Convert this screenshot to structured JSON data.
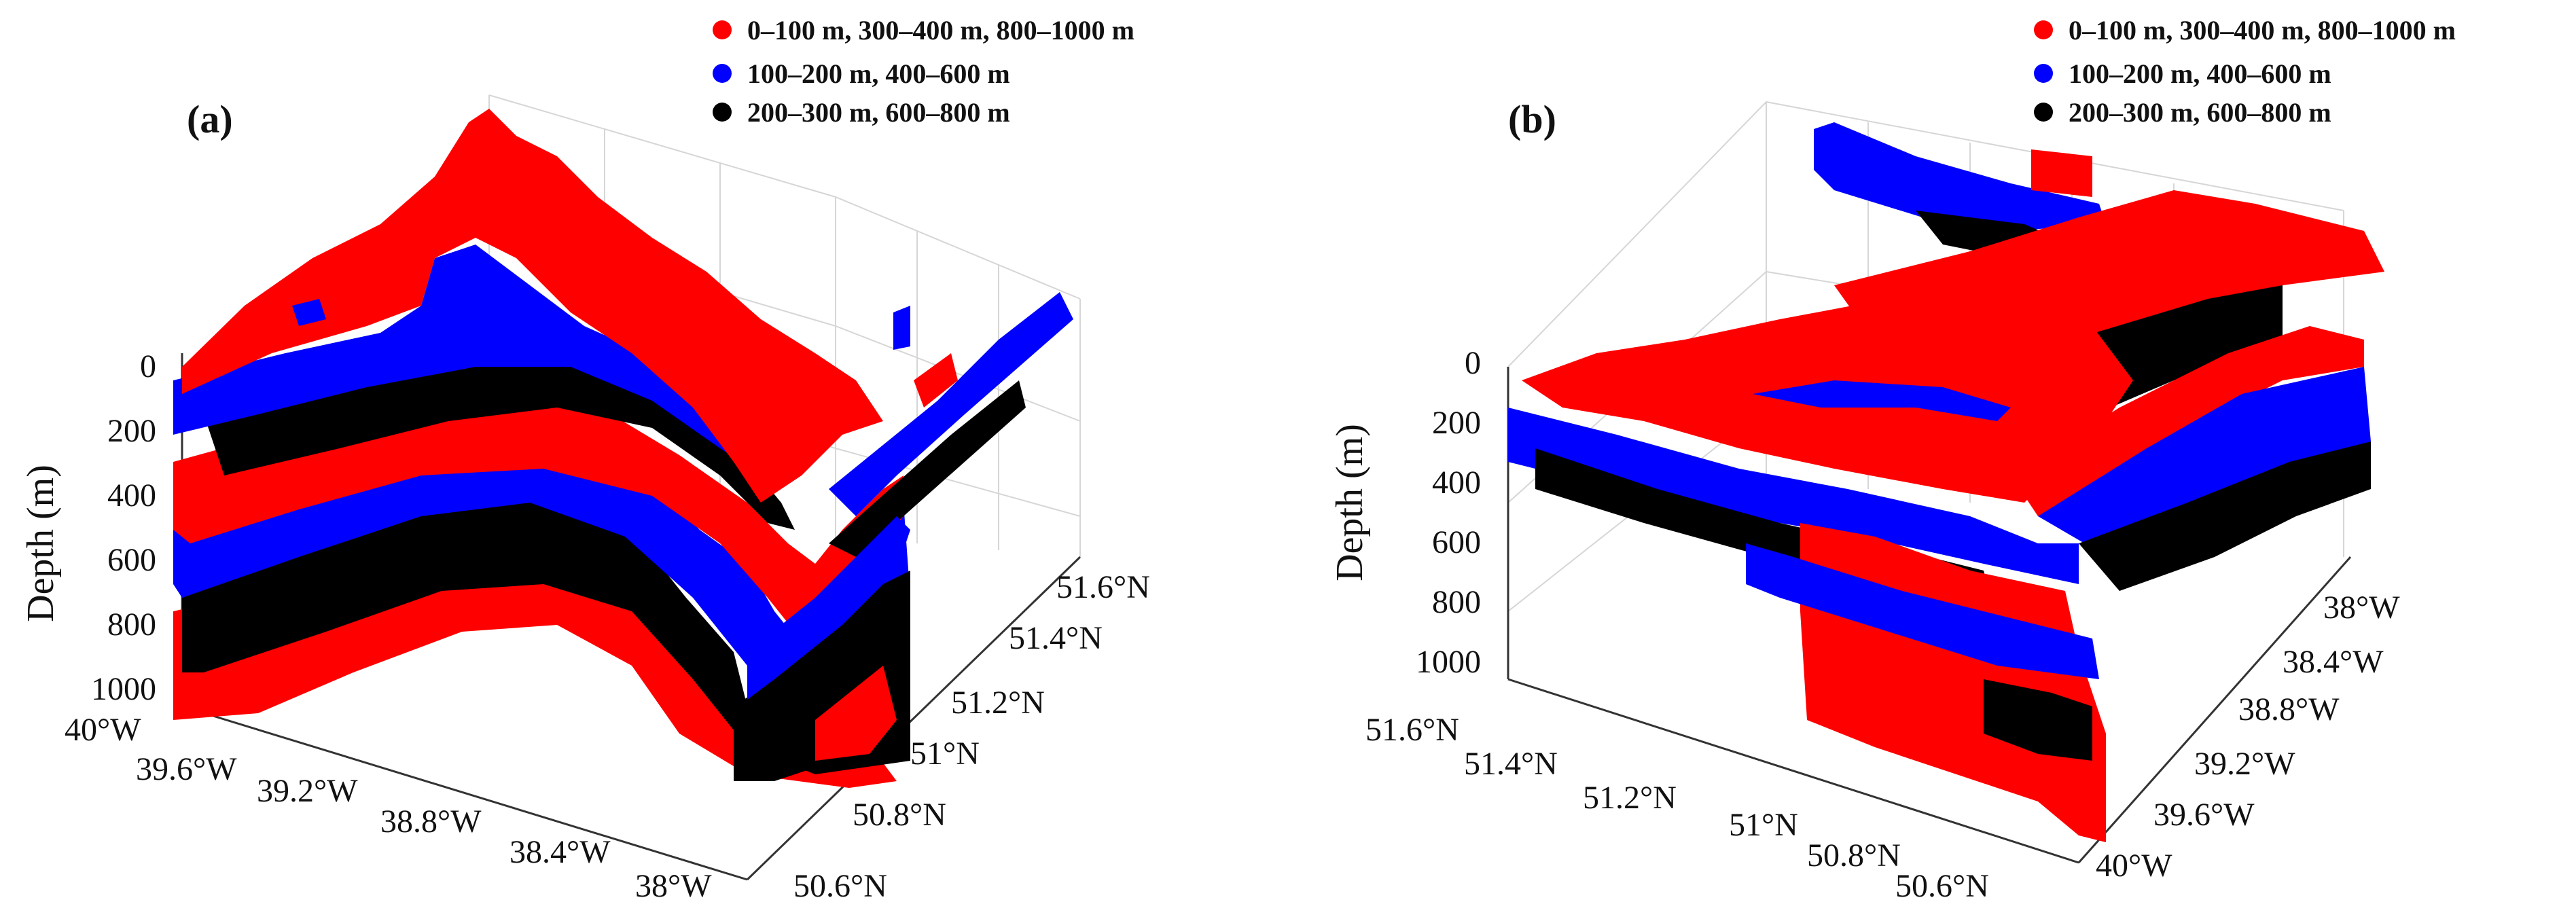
{
  "chart_data": [
    {
      "type": "scatter",
      "panel_label": "(a)",
      "zlabel": "Depth (m)",
      "z_ticks": [
        "0",
        "200",
        "400",
        "600",
        "800",
        "1000"
      ],
      "z_range": [
        0,
        1000
      ],
      "lon_ticks": [
        "40°W",
        "39.6°W",
        "39.2°W",
        "38.8°W",
        "38.4°W",
        "38°W"
      ],
      "lat_ticks": [
        "50.6°N",
        "50.8°N",
        "51°N",
        "51.2°N",
        "51.4°N",
        "51.6°N"
      ],
      "legend": [
        {
          "label": "0–100 m, 300–400 m, 800–1000 m",
          "color": "#ff0000"
        },
        {
          "label": "100–200 m, 400–600 m",
          "color": "#0000ff"
        },
        {
          "label": "200–300 m, 600–800 m",
          "color": "#000000"
        }
      ]
    },
    {
      "type": "scatter",
      "panel_label": "(b)",
      "zlabel": "Depth (m)",
      "z_ticks": [
        "0",
        "200",
        "400",
        "600",
        "800",
        "1000"
      ],
      "z_range": [
        0,
        1000
      ],
      "lat_ticks": [
        "51.6°N",
        "51.4°N",
        "51.2°N",
        "51°N",
        "50.8°N",
        "50.6°N"
      ],
      "lon_ticks": [
        "40°W",
        "39.6°W",
        "39.2°W",
        "38.8°W",
        "38.4°W",
        "38°W"
      ],
      "legend": [
        {
          "label": "0–100 m, 300–400 m, 800–1000 m",
          "color": "#ff0000"
        },
        {
          "label": "100–200 m, 400–600 m",
          "color": "#0000ff"
        },
        {
          "label": "200–300 m, 600–800 m",
          "color": "#000000"
        }
      ]
    }
  ]
}
